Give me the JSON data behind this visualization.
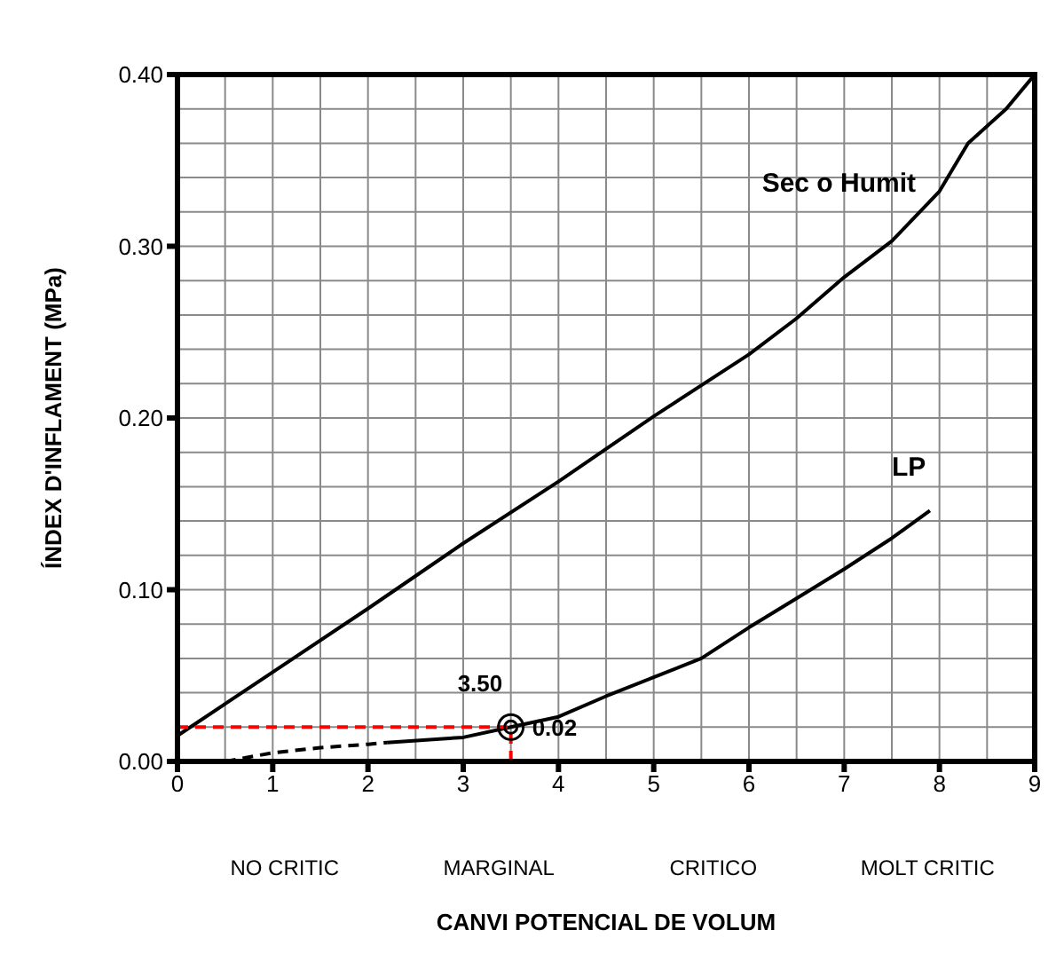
{
  "chart_data": {
    "type": "line",
    "xlabel": "CANVI POTENCIAL DE VOLUM",
    "ylabel": "ÍNDEX D'INFLAMENT (MPa)",
    "xlim": [
      0,
      9
    ],
    "xticks": [
      0,
      1,
      2,
      3,
      4,
      5,
      6,
      7,
      8,
      9
    ],
    "ylim": [
      0,
      0.4
    ],
    "yticks": [
      {
        "value": 0,
        "label": "0.00"
      },
      {
        "value": 0.1,
        "label": "0.10"
      },
      {
        "value": 0.2,
        "label": "0.20"
      },
      {
        "value": 0.3,
        "label": "0.30"
      },
      {
        "value": 0.4,
        "label": "0.40"
      }
    ],
    "grid": true,
    "legend": false,
    "marker": "none",
    "line_style": "solid",
    "series": [
      {
        "name": "Sec o Humit",
        "color": "#000000",
        "x": [
          0,
          1,
          2,
          3,
          4,
          5,
          6,
          6.5,
          7,
          7.5,
          8,
          8.3,
          8.7,
          9
        ],
        "values": [
          0.015,
          0.052,
          0.089,
          0.127,
          0.163,
          0.201,
          0.237,
          0.258,
          0.282,
          0.303,
          0.332,
          0.36,
          0.38,
          0.4
        ]
      },
      {
        "color": "#000000",
        "line_style": "dashed",
        "x": [
          0.5,
          1,
          1.5,
          2,
          2.2
        ],
        "values": [
          0,
          0.005,
          0.008,
          0.01,
          0.011
        ]
      },
      {
        "name": "LP",
        "color": "#000000",
        "x": [
          2.2,
          3,
          3.5,
          4,
          4.5,
          5,
          5.5,
          6,
          6.5,
          7,
          7.5,
          7.9
        ],
        "values": [
          0.011,
          0.014,
          0.02,
          0.026,
          0.038,
          0.049,
          0.06,
          0.078,
          0.095,
          0.112,
          0.13,
          0.146
        ]
      },
      {
        "color": "#ff0000",
        "line_style": "dashed",
        "x": [
          0,
          3.5
        ],
        "values": [
          0.02,
          0.02
        ]
      },
      {
        "color": "#ff0000",
        "line_style": "dashed",
        "x": [
          3.5,
          3.5
        ],
        "values": [
          0,
          0.02
        ]
      },
      {
        "type": "scatter",
        "color": "#000000",
        "marker": "circle",
        "x": [
          3.5
        ],
        "values": [
          0.02
        ]
      }
    ],
    "annotations": [
      {
        "text": "3.50",
        "x": 3.5,
        "y": 0.02
      },
      {
        "text": "0.02",
        "x": 3.5,
        "y": 0.02
      },
      "NO CRITIC",
      "MARGINAL",
      "CRITICO",
      "MOLT CRITIC"
    ]
  }
}
